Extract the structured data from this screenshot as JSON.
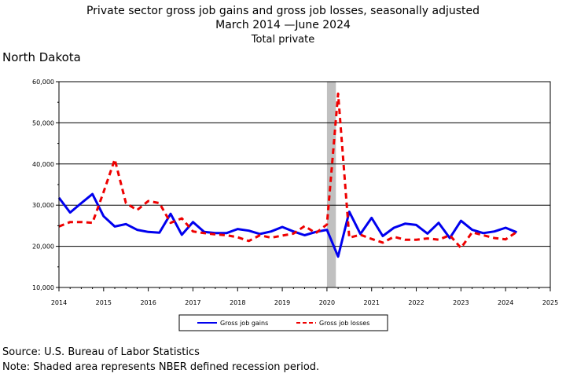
{
  "title": {
    "line1": "Private sector gross job gains and gross job losses, seasonally adjusted",
    "line2": "March 2014 —June 2024",
    "line3": "Total private"
  },
  "region": "North Dakota",
  "footer": {
    "source": "Source: U.S. Bureau of Labor Statistics",
    "note": "Note: Shaded area represents NBER defined recession period."
  },
  "chart_data": {
    "type": "line",
    "xlim": [
      2014,
      2025
    ],
    "ylim": [
      10000,
      60000
    ],
    "x_ticks": [
      "2014",
      "2015",
      "2016",
      "2017",
      "2018",
      "2019",
      "2020",
      "2021",
      "2022",
      "2023",
      "2024",
      "2025"
    ],
    "y_ticks": [
      "10,000",
      "20,000",
      "30,000",
      "40,000",
      "50,000",
      "60,000"
    ],
    "grid": true,
    "legend_position": "bottom",
    "recession": {
      "start": 2020.0,
      "end": 2020.2,
      "color": "#c0c0c0"
    },
    "series": [
      {
        "name": "Gross job gains",
        "color": "#0000ee",
        "style": "solid",
        "x": [
          2014.0,
          2014.25,
          2014.5,
          2014.75,
          2015.0,
          2015.25,
          2015.5,
          2015.75,
          2016.0,
          2016.25,
          2016.5,
          2016.75,
          2017.0,
          2017.25,
          2017.5,
          2017.75,
          2018.0,
          2018.25,
          2018.5,
          2018.75,
          2019.0,
          2019.25,
          2019.5,
          2019.75,
          2020.0,
          2020.25,
          2020.5,
          2020.75,
          2021.0,
          2021.25,
          2021.5,
          2021.75,
          2022.0,
          2022.25,
          2022.5,
          2022.75,
          2023.0,
          2023.25,
          2023.5,
          2023.75,
          2024.0,
          2024.25
        ],
        "values": [
          31800,
          28200,
          30500,
          32700,
          27300,
          24800,
          25400,
          24000,
          23500,
          23300,
          27900,
          22800,
          25900,
          23500,
          23200,
          23200,
          24200,
          23800,
          23000,
          23600,
          24700,
          23600,
          22700,
          23500,
          24000,
          17500,
          28400,
          23000,
          26900,
          22500,
          24500,
          25500,
          25200,
          23100,
          25700,
          22000,
          26200,
          24000,
          23200,
          23600,
          24500,
          23400
        ]
      },
      {
        "name": "Gross job losses",
        "color": "#ee0000",
        "style": "dashed",
        "x": [
          2014.0,
          2014.25,
          2014.5,
          2014.75,
          2015.0,
          2015.25,
          2015.5,
          2015.75,
          2016.0,
          2016.25,
          2016.5,
          2016.75,
          2017.0,
          2017.25,
          2017.5,
          2017.75,
          2018.0,
          2018.25,
          2018.5,
          2018.75,
          2019.0,
          2019.25,
          2019.5,
          2019.75,
          2020.0,
          2020.25,
          2020.5,
          2020.75,
          2021.0,
          2021.25,
          2021.5,
          2021.75,
          2022.0,
          2022.25,
          2022.5,
          2022.75,
          2023.0,
          2023.25,
          2023.5,
          2023.75,
          2024.0,
          2024.25
        ],
        "values": [
          24800,
          25900,
          25900,
          25700,
          33200,
          41100,
          30500,
          28800,
          31000,
          30500,
          25700,
          26800,
          23600,
          23200,
          22900,
          22700,
          22200,
          21300,
          22700,
          22100,
          22600,
          23100,
          24900,
          23200,
          25300,
          57100,
          22100,
          22800,
          21800,
          20900,
          22300,
          21600,
          21600,
          21900,
          21600,
          22700,
          19600,
          23400,
          22700,
          22000,
          21700,
          23500
        ]
      }
    ]
  }
}
